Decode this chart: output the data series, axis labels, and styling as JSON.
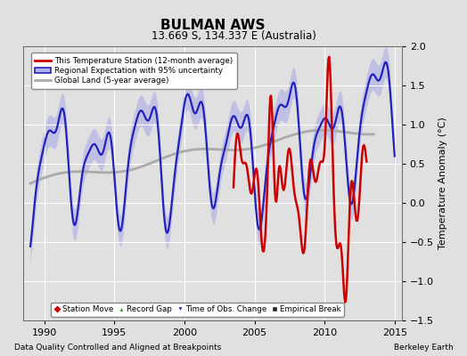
{
  "title": "BULMAN AWS",
  "subtitle": "13.669 S, 134.337 E (Australia)",
  "ylabel": "Temperature Anomaly (°C)",
  "xlabel_left": "Data Quality Controlled and Aligned at Breakpoints",
  "xlabel_right": "Berkeley Earth",
  "xlim": [
    1988.5,
    2015.5
  ],
  "ylim": [
    -1.5,
    2.0
  ],
  "yticks": [
    -1.5,
    -1.0,
    -0.5,
    0.0,
    0.5,
    1.0,
    1.5,
    2.0
  ],
  "xticks": [
    1990,
    1995,
    2000,
    2005,
    2010,
    2015
  ],
  "bg_color": "#e0e0e0",
  "grid_color": "#ffffff",
  "regional_color": "#2222bb",
  "regional_fill": "#b0b0e8",
  "station_color": "#cc0000",
  "global_color": "#aaaaaa",
  "legend_labels": [
    "This Temperature Station (12-month average)",
    "Regional Expectation with 95% uncertainty",
    "Global Land (5-year average)"
  ],
  "bottom_legend": [
    "Station Move",
    "Record Gap",
    "Time of Obs. Change",
    "Empirical Break"
  ],
  "bottom_colors": [
    "#cc0000",
    "#228B22",
    "#2222bb",
    "#222222"
  ]
}
